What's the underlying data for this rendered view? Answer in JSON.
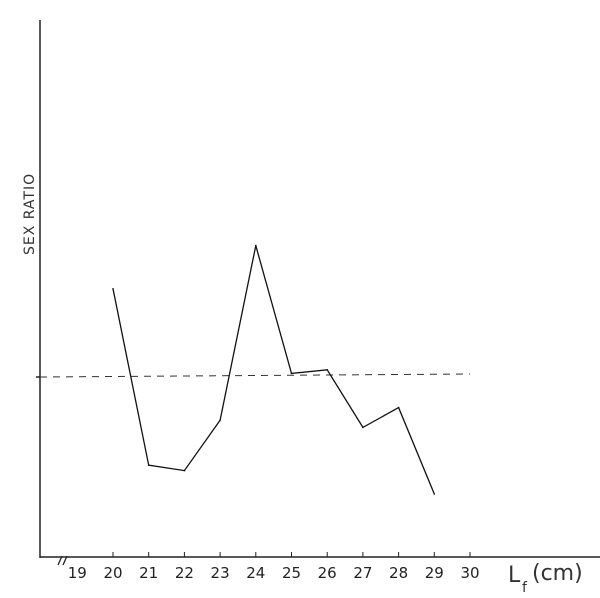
{
  "chart_data": {
    "type": "line",
    "title": "",
    "ylabel": "SEX RATIO",
    "xlabel_main": "L",
    "xlabel_sub": "f",
    "xlabel_unit": "(cm)",
    "x_ticks": [
      "19",
      "20",
      "21",
      "22",
      "23",
      "24",
      "25",
      "26",
      "27",
      "28",
      "29",
      "30"
    ],
    "xlim": [
      19,
      30
    ],
    "ylim": [
      0,
      3
    ],
    "y_ticks_labeled": false,
    "grid": false,
    "axis_break": "x-axis near origin",
    "reference_line": {
      "y": 1,
      "style": "dashed",
      "x_range": [
        18,
        30
      ]
    },
    "series": [
      {
        "x": [
          20,
          21,
          22,
          23,
          24,
          25,
          26,
          27,
          28,
          29
        ],
        "y": [
          1.49,
          0.51,
          0.48,
          0.76,
          1.73,
          1.02,
          1.04,
          0.72,
          0.83,
          0.35
        ]
      }
    ],
    "colors": {
      "line": "#111111",
      "axis": "#222222"
    }
  }
}
